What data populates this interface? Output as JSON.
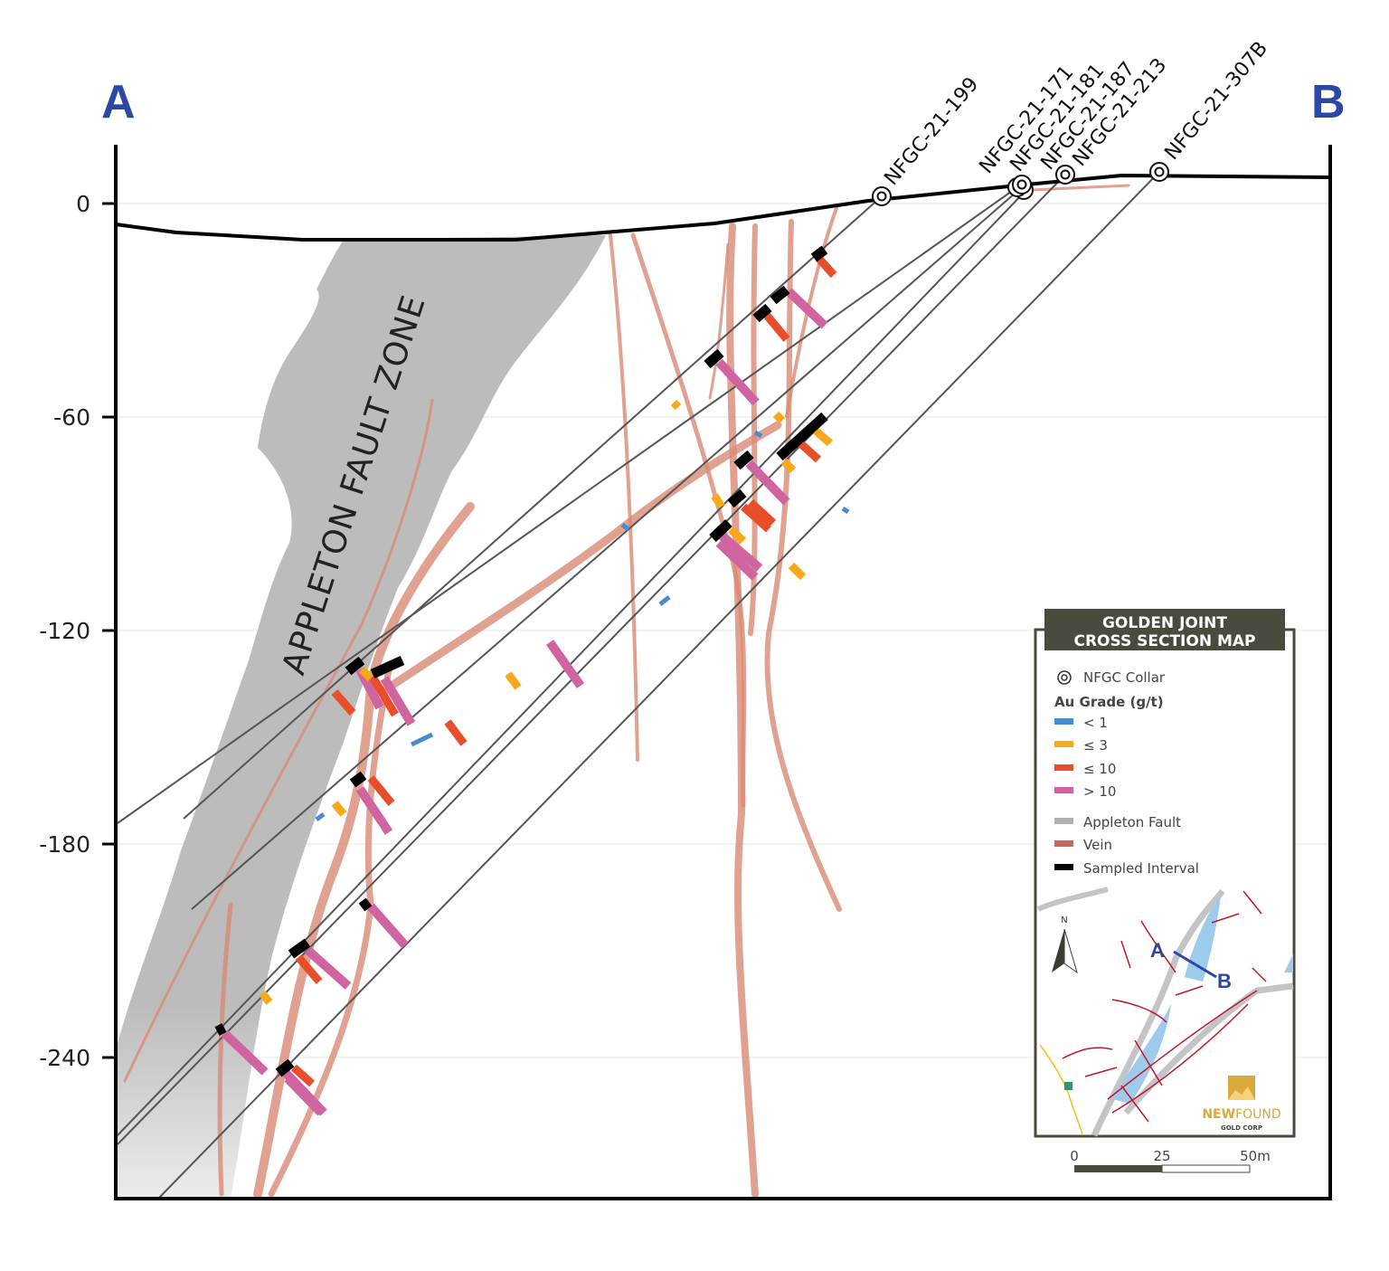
{
  "section": {
    "start_label": "A",
    "end_label": "B"
  },
  "y_axis": {
    "ticks": [
      "0",
      "-60",
      "-120",
      "-180",
      "-240"
    ]
  },
  "fault_zone_label": "APPLETON FAULT ZONE",
  "drill_holes": [
    "NFGC-21-199",
    "NFGC-21-171",
    "NFGC-21-181",
    "NFGC-21-187",
    "NFGC-21-213",
    "NFGC-21-307B"
  ],
  "legend": {
    "title_line1": "GOLDEN JOINT",
    "title_line2": "CROSS SECTION MAP",
    "collar": "NFGC Collar",
    "grade_heading": "Au Grade (g/t)",
    "grades": [
      {
        "label": "< 1",
        "color": "#4a8bd0"
      },
      {
        "label": "≤ 3",
        "color": "#f7a81b"
      },
      {
        "label": "≤ 10",
        "color": "#e84e2a"
      },
      {
        "label": "> 10",
        "color": "#d064a0"
      }
    ],
    "features": [
      {
        "label": "Appleton Fault",
        "color": "#b0b0b3"
      },
      {
        "label": "Vein",
        "color": "#c8665a"
      },
      {
        "label": "Sampled Interval",
        "color": "#000000"
      }
    ],
    "map": {
      "north": "N",
      "a": "A",
      "b": "B"
    },
    "logo": {
      "name1": "NEW",
      "name2": "FOUND",
      "sub": "GOLD CORP"
    },
    "scale": [
      "0",
      "25",
      "50m"
    ]
  }
}
